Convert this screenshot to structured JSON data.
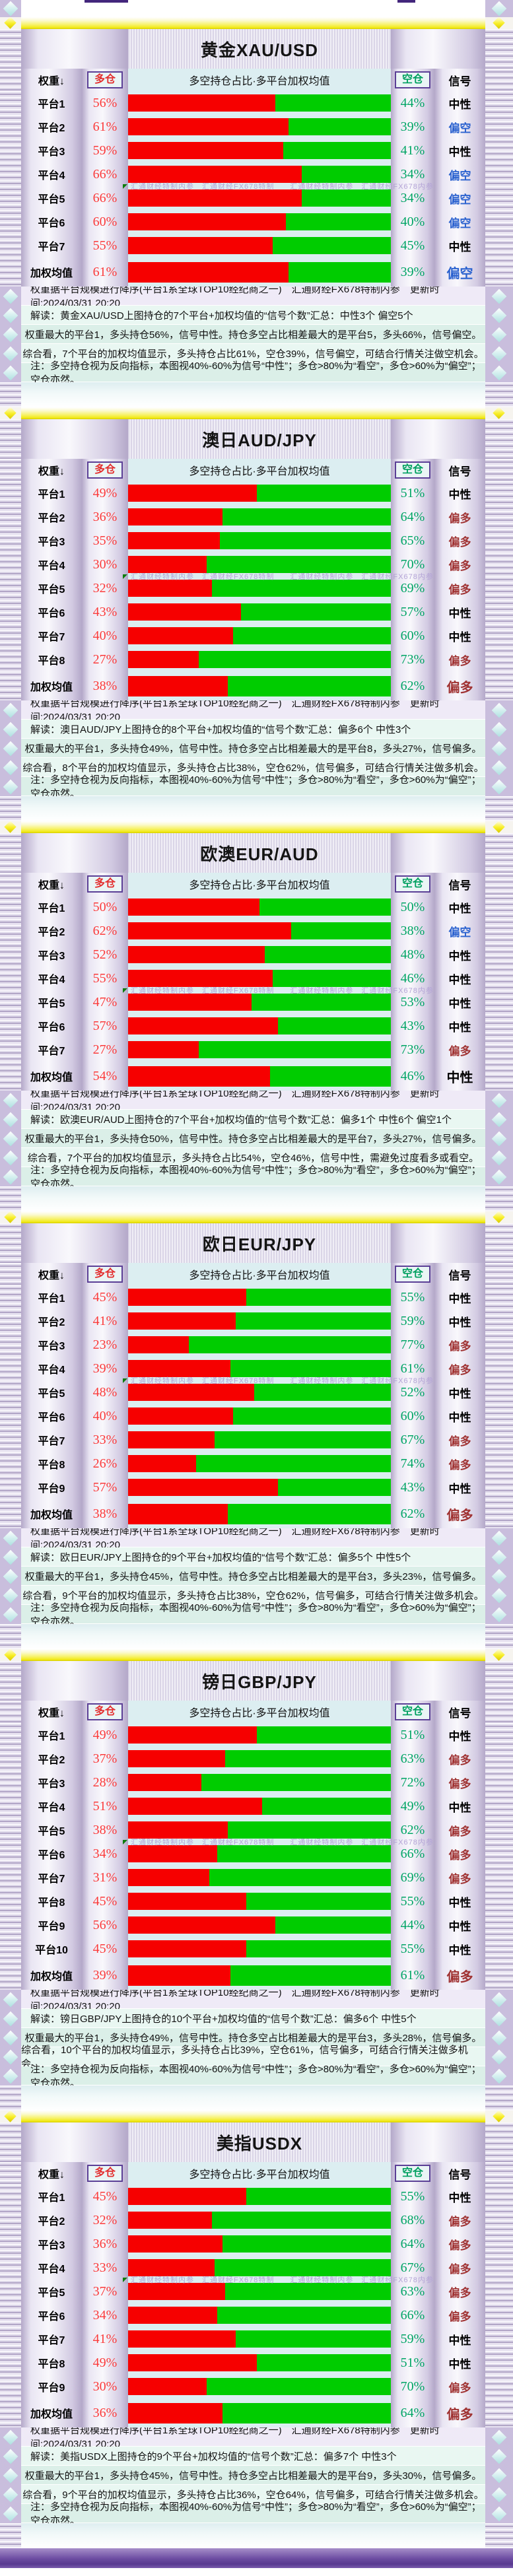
{
  "page": {
    "watermark": "汇通财经特制内参　汇通财经FX678特制　　汇通财经特制内参　汇通财经FX678内参",
    "source_note": "权重据平台规模进行降序(平台1系全球TOP10经纪商之一)　汇通财经FX678特制内参　更新时间:2024/03/31 20:20",
    "bottom_note": "注：多空持仓视为反向指标，本图视40%-60%为信号“中性”；多仓>80%为“看空”，多仓>60%为“偏空”；空仓亦然。"
  },
  "header": {
    "weight": "权重↓",
    "long": "多仓",
    "center": "多空持仓占比·多平台加权均值",
    "short": "空仓",
    "signal": "信号"
  },
  "colors": {
    "long_bar": "#f60000",
    "short_bar": "#00cc00",
    "long_text": "#fb3b3b",
    "short_text": "#00a565",
    "signal_neutral": "#000000",
    "signal_bearish": "#2b62cf",
    "signal_bullish": "#a03333",
    "separator": "#f2e918"
  },
  "chart_data": [
    {
      "type": "bar",
      "orientation": "horizontal-stacked",
      "title": "黄金XAU/USD",
      "xlim": [
        0,
        100
      ],
      "categories": [
        "平台1",
        "平台2",
        "平台3",
        "平台4",
        "平台5",
        "平台6",
        "平台7",
        "加权均值"
      ],
      "series": [
        {
          "name": "多仓",
          "color": "#f60000",
          "values": [
            56,
            61,
            59,
            66,
            66,
            60,
            55,
            61
          ]
        },
        {
          "name": "空仓",
          "color": "#00cc00",
          "values": [
            44,
            39,
            41,
            34,
            34,
            40,
            45,
            39
          ]
        }
      ],
      "signals": [
        "中性",
        "偏空",
        "中性",
        "偏空",
        "偏空",
        "偏空",
        "中性",
        "偏空"
      ],
      "watermark_after_row": 4,
      "footer": {
        "interpretation": "解读：黄金XAU/USD上图持仓的7个平台+加权均值的“信号个数”汇总：中性3个 偏空5个",
        "detail": "权重最大的平台1，多头持仓56%，信号中性。持仓多空占比相差最大的是平台5，多头66%，信号偏空。",
        "summary": "综合看，7个平台的加权均值显示，多头持仓占比61%，空仓39%，信号偏空，可结合行情关注做空机会。"
      }
    },
    {
      "type": "bar",
      "orientation": "horizontal-stacked",
      "title": "澳日AUD/JPY",
      "xlim": [
        0,
        100
      ],
      "categories": [
        "平台1",
        "平台2",
        "平台3",
        "平台4",
        "平台5",
        "平台6",
        "平台7",
        "平台8",
        "加权均值"
      ],
      "series": [
        {
          "name": "多仓",
          "color": "#f60000",
          "values": [
            49,
            36,
            35,
            30,
            32,
            43,
            40,
            27,
            38
          ]
        },
        {
          "name": "空仓",
          "color": "#00cc00",
          "values": [
            51,
            64,
            65,
            70,
            69,
            57,
            60,
            73,
            62
          ]
        }
      ],
      "signals": [
        "中性",
        "偏多",
        "偏多",
        "偏多",
        "偏多",
        "中性",
        "中性",
        "偏多",
        "偏多"
      ],
      "watermark_after_row": 4,
      "footer": {
        "interpretation": "解读：澳日AUD/JPY上图持仓的8个平台+加权均值的“信号个数”汇总：偏多6个 中性3个",
        "detail": "权重最大的平台1，多头持仓49%，信号中性。持仓多空占比相差最大的是平台8，多头27%，信号偏多。",
        "summary": "综合看，8个平台的加权均值显示，多头持仓占比38%，空仓62%，信号偏多，可结合行情关注做多机会。"
      }
    },
    {
      "type": "bar",
      "orientation": "horizontal-stacked",
      "title": "欧澳EUR/AUD",
      "xlim": [
        0,
        100
      ],
      "categories": [
        "平台1",
        "平台2",
        "平台3",
        "平台4",
        "平台5",
        "平台6",
        "平台7",
        "加权均值"
      ],
      "series": [
        {
          "name": "多仓",
          "color": "#f60000",
          "values": [
            50,
            62,
            52,
            55,
            47,
            57,
            27,
            54
          ]
        },
        {
          "name": "空仓",
          "color": "#00cc00",
          "values": [
            50,
            38,
            48,
            46,
            53,
            43,
            73,
            46
          ]
        }
      ],
      "signals": [
        "中性",
        "偏空",
        "中性",
        "中性",
        "中性",
        "中性",
        "偏多",
        "中性"
      ],
      "watermark_after_row": 4,
      "footer": {
        "interpretation": "解读：欧澳EUR/AUD上图持仓的7个平台+加权均值的“信号个数”汇总：偏多1个 中性6个 偏空1个",
        "detail": "权重最大的平台1，多头持仓50%，信号中性。持仓多空占比相差最大的是平台7，多头27%，信号偏多。",
        "summary": "综合看，7个平台的加权均值显示，多头持仓占比54%，空仓46%，信号中性，需避免过度看多或看空。"
      }
    },
    {
      "type": "bar",
      "orientation": "horizontal-stacked",
      "title": "欧日EUR/JPY",
      "xlim": [
        0,
        100
      ],
      "categories": [
        "平台1",
        "平台2",
        "平台3",
        "平台4",
        "平台5",
        "平台6",
        "平台7",
        "平台8",
        "平台9",
        "加权均值"
      ],
      "series": [
        {
          "name": "多仓",
          "color": "#f60000",
          "values": [
            45,
            41,
            23,
            39,
            48,
            40,
            33,
            26,
            57,
            38
          ]
        },
        {
          "name": "空仓",
          "color": "#00cc00",
          "values": [
            55,
            59,
            77,
            61,
            52,
            60,
            67,
            74,
            43,
            62
          ]
        }
      ],
      "signals": [
        "中性",
        "中性",
        "偏多",
        "偏多",
        "中性",
        "中性",
        "偏多",
        "偏多",
        "中性",
        "偏多"
      ],
      "watermark_after_row": 4,
      "footer": {
        "interpretation": "解读：欧日EUR/JPY上图持仓的9个平台+加权均值的“信号个数”汇总：偏多5个 中性5个",
        "detail": "权重最大的平台1，多头持仓45%，信号中性。持仓多空占比相差最大的是平台3，多头23%，信号偏多。",
        "summary": "综合看，9个平台的加权均值显示，多头持仓占比38%，空仓62%，信号偏多，可结合行情关注做多机会。"
      }
    },
    {
      "type": "bar",
      "orientation": "horizontal-stacked",
      "title": "镑日GBP/JPY",
      "xlim": [
        0,
        100
      ],
      "categories": [
        "平台1",
        "平台2",
        "平台3",
        "平台4",
        "平台5",
        "平台6",
        "平台7",
        "平台8",
        "平台9",
        "平台10",
        "加权均值"
      ],
      "series": [
        {
          "name": "多仓",
          "color": "#f60000",
          "values": [
            49,
            37,
            28,
            51,
            38,
            34,
            31,
            45,
            56,
            45,
            39
          ]
        },
        {
          "name": "空仓",
          "color": "#00cc00",
          "values": [
            51,
            63,
            72,
            49,
            62,
            66,
            69,
            55,
            44,
            55,
            61
          ]
        }
      ],
      "signals": [
        "中性",
        "偏多",
        "偏多",
        "中性",
        "偏多",
        "偏多",
        "偏多",
        "中性",
        "中性",
        "中性",
        "偏多"
      ],
      "watermark_after_row": 5,
      "footer": {
        "interpretation": "解读：镑日GBP/JPY上图持仓的10个平台+加权均值的“信号个数”汇总：偏多6个 中性5个",
        "detail": "权重最大的平台1，多头持仓49%，信号中性。持仓多空占比相差最大的是平台3，多头28%，信号偏多。",
        "summary": "综合看，10个平台的加权均值显示，多头持仓占比39%，空仓61%，信号偏多，可结合行情关注做多机会。"
      }
    },
    {
      "type": "bar",
      "orientation": "horizontal-stacked",
      "title": "美指USDX",
      "xlim": [
        0,
        100
      ],
      "categories": [
        "平台1",
        "平台2",
        "平台3",
        "平台4",
        "平台5",
        "平台6",
        "平台7",
        "平台8",
        "平台9",
        "加权均值"
      ],
      "series": [
        {
          "name": "多仓",
          "color": "#f60000",
          "values": [
            45,
            32,
            36,
            33,
            37,
            34,
            41,
            49,
            30,
            36
          ]
        },
        {
          "name": "空仓",
          "color": "#00cc00",
          "values": [
            55,
            68,
            64,
            67,
            63,
            66,
            59,
            51,
            70,
            64
          ]
        }
      ],
      "signals": [
        "中性",
        "偏多",
        "偏多",
        "偏多",
        "偏多",
        "偏多",
        "中性",
        "中性",
        "偏多",
        "偏多"
      ],
      "watermark_after_row": 4,
      "footer": {
        "interpretation": "解读：美指USDX上图持仓的9个平台+加权均值的“信号个数”汇总：偏多7个 中性3个",
        "detail": "权重最大的平台1，多头持仓45%，信号中性。持仓多空占比相差最大的是平台9，多头30%，信号偏多。",
        "summary": "综合看，9个平台的加权均值显示，多头持仓占比36%，空仓64%，信号偏多，可结合行情关注做多机会。"
      }
    }
  ]
}
